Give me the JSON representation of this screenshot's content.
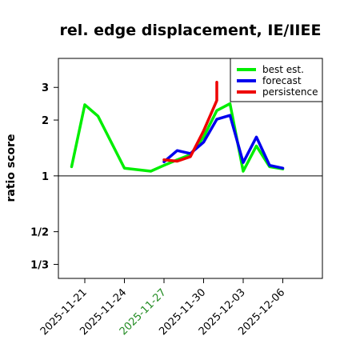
{
  "chart_data": {
    "type": "line",
    "title": "rel. edge displacement, IE/IIEE",
    "ylabel": "ratio score",
    "xlabel": "",
    "y_scale": "log",
    "ylim": [
      0.28,
      4.3
    ],
    "xlim": [
      "2025-11-19",
      "2025-12-09"
    ],
    "reference_line": 1,
    "yticks": [
      {
        "value": 0.3333,
        "label": "1/3"
      },
      {
        "value": 0.5,
        "label": "1/2"
      },
      {
        "value": 1,
        "label": "1"
      },
      {
        "value": 2,
        "label": "2"
      },
      {
        "value": 3,
        "label": "3"
      }
    ],
    "xticks": [
      {
        "date": "2025-11-21",
        "label": "2025-11-21",
        "color": "#000000"
      },
      {
        "date": "2025-11-24",
        "label": "2025-11-24",
        "color": "#000000"
      },
      {
        "date": "2025-11-27",
        "label": "2025-11-27",
        "color": "#228B22"
      },
      {
        "date": "2025-11-30",
        "label": "2025-11-30",
        "color": "#000000"
      },
      {
        "date": "2025-12-03",
        "label": "2025-12-03",
        "color": "#000000"
      },
      {
        "date": "2025-12-06",
        "label": "2025-12-06",
        "color": "#000000"
      }
    ],
    "legend_position": "top-right",
    "series": [
      {
        "name": "best est.",
        "color": "#00ee00",
        "x": [
          "2025-11-20",
          "2025-11-21",
          "2025-11-22",
          "2025-11-24",
          "2025-11-26",
          "2025-11-27",
          "2025-11-28",
          "2025-11-29",
          "2025-11-30",
          "2025-12-01",
          "2025-12-02",
          "2025-12-03",
          "2025-12-04",
          "2025-12-05",
          "2025-12-06"
        ],
        "y": [
          1.12,
          2.42,
          2.1,
          1.1,
          1.06,
          1.14,
          1.22,
          1.3,
          1.62,
          2.25,
          2.45,
          1.06,
          1.45,
          1.12,
          1.09
        ]
      },
      {
        "name": "forecast",
        "color": "#0000ee",
        "x": [
          "2025-11-27",
          "2025-11-28",
          "2025-11-29",
          "2025-11-30",
          "2025-12-01",
          "2025-12-02",
          "2025-12-03",
          "2025-12-04",
          "2025-12-05",
          "2025-12-06"
        ],
        "y": [
          1.19,
          1.37,
          1.32,
          1.52,
          2.02,
          2.12,
          1.18,
          1.62,
          1.14,
          1.1
        ]
      },
      {
        "name": "persistence",
        "color": "#ee0000",
        "x": [
          "2025-11-27",
          "2025-11-28",
          "2025-11-29",
          "2025-11-30",
          "2025-12-01",
          "2025-12-01"
        ],
        "y": [
          1.22,
          1.2,
          1.27,
          1.75,
          2.55,
          3.2
        ]
      }
    ]
  }
}
